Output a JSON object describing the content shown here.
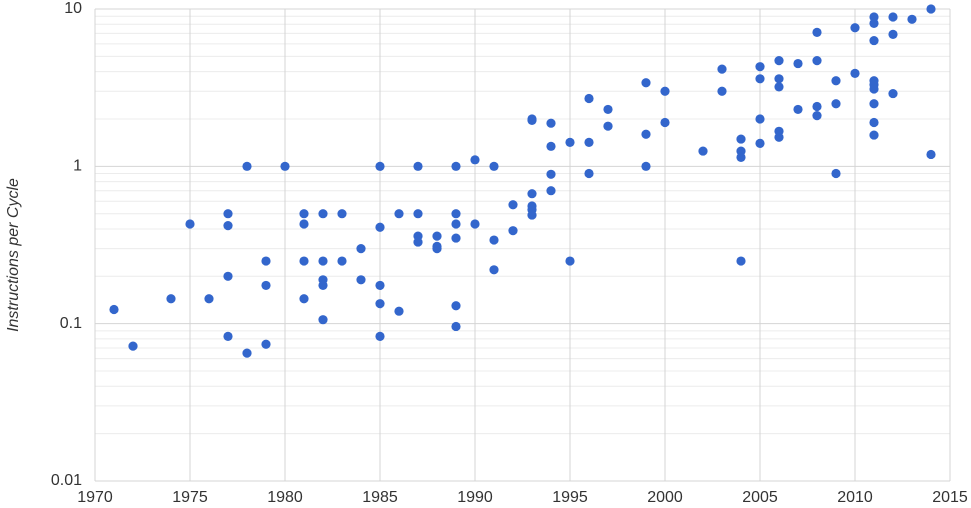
{
  "chart_data": {
    "type": "scatter",
    "y_label": "Instructions per Cycle",
    "color": "#3366cc",
    "log_y": true,
    "grid": true,
    "xlim": [
      1970,
      2015
    ],
    "xticks": [
      1970,
      1975,
      1980,
      1985,
      1990,
      1995,
      2000,
      2005,
      2010,
      2015
    ],
    "ylim": [
      0.01,
      10
    ],
    "yticks": [
      0.01,
      0.1,
      1,
      10
    ],
    "minor_yticks": [
      0.02,
      0.03,
      0.04,
      0.05,
      0.06,
      0.07,
      0.08,
      0.09,
      0.2,
      0.3,
      0.4,
      0.5,
      0.6,
      0.7,
      0.8,
      0.9,
      2,
      3,
      4,
      5,
      6,
      7,
      8,
      9
    ],
    "x": [
      1971,
      1972,
      1974,
      1975,
      1976,
      1977,
      1977,
      1977,
      1977,
      1978,
      1978,
      1979,
      1979,
      1979,
      1980,
      1981,
      1981,
      1981,
      1981,
      1982,
      1982,
      1982,
      1982,
      1982,
      1983,
      1983,
      1984,
      1984,
      1985,
      1985,
      1985,
      1985,
      1985,
      1986,
      1986,
      1987,
      1987,
      1987,
      1987,
      1988,
      1988,
      1988,
      1989,
      1989,
      1989,
      1989,
      1989,
      1989,
      1990,
      1990,
      1991,
      1991,
      1991,
      1992,
      1992,
      1993,
      1993,
      1993,
      1993,
      1993,
      1993,
      1994,
      1994,
      1994,
      1994,
      1995,
      1995,
      1996,
      1996,
      1996,
      1997,
      1997,
      1999,
      1999,
      1999,
      2000,
      2000,
      2002,
      2003,
      2003,
      2004,
      2004,
      2004,
      2004,
      2005,
      2005,
      2005,
      2005,
      2006,
      2006,
      2006,
      2006,
      2006,
      2007,
      2007,
      2008,
      2008,
      2008,
      2008,
      2009,
      2009,
      2009,
      2010,
      2010,
      2011,
      2011,
      2011,
      2011,
      2011,
      2011,
      2011,
      2011,
      2011,
      2012,
      2012,
      2012,
      2013,
      2014,
      2014
    ],
    "values": [
      0.123,
      0.072,
      0.144,
      0.43,
      0.144,
      0.5,
      0.42,
      0.2,
      0.083,
      1,
      0.065,
      0.25,
      0.175,
      0.074,
      1,
      0.5,
      0.43,
      0.25,
      0.144,
      0.5,
      0.25,
      0.19,
      0.175,
      0.106,
      0.5,
      0.25,
      0.3,
      0.19,
      1,
      0.41,
      0.175,
      0.134,
      0.083,
      0.5,
      0.12,
      1,
      0.5,
      0.36,
      0.33,
      0.36,
      0.31,
      0.3,
      1,
      0.5,
      0.43,
      0.35,
      0.13,
      0.096,
      1.1,
      0.43,
      1,
      0.34,
      0.22,
      0.57,
      0.39,
      2.0,
      1.96,
      0.67,
      0.56,
      0.53,
      0.49,
      1.88,
      1.34,
      0.89,
      0.7,
      1.42,
      0.25,
      2.7,
      1.42,
      0.9,
      2.3,
      1.8,
      3.4,
      1.6,
      1,
      3.0,
      1.9,
      1.25,
      4.15,
      3.0,
      1.49,
      1.25,
      1.14,
      0.25,
      4.3,
      3.6,
      2.0,
      1.4,
      4.7,
      3.6,
      3.2,
      1.67,
      1.53,
      4.5,
      2.3,
      7.1,
      4.7,
      2.4,
      2.1,
      3.5,
      2.5,
      0.9,
      7.6,
      3.9,
      8.9,
      8.1,
      6.3,
      3.5,
      3.3,
      3.1,
      2.5,
      1.9,
      1.58,
      8.9,
      6.9,
      2.9,
      8.6,
      10,
      1.19
    ]
  }
}
